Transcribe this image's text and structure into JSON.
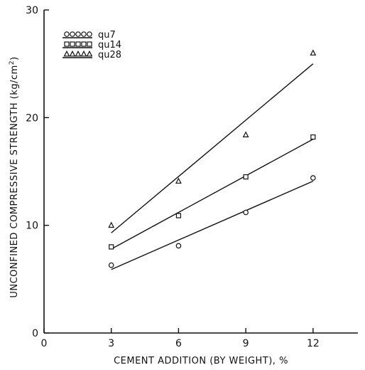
{
  "chart_data": {
    "type": "scatter",
    "xlabel": "CEMENT ADDITION (BY WEIGHT), %",
    "ylabel_parts": [
      "UNCONFINED COMPRESSIVE STRENGTH (kg/cm",
      "2",
      ")"
    ],
    "xlim": [
      0,
      14
    ],
    "ylim": [
      0,
      30
    ],
    "x_ticks": [
      0,
      3,
      6,
      9,
      12
    ],
    "y_ticks": [
      0,
      10,
      20,
      30
    ],
    "grid": false,
    "legend_position": "top-left",
    "series": [
      {
        "name": "qu7",
        "marker": "circle",
        "x": [
          3,
          6,
          9,
          12
        ],
        "y": [
          6.3,
          8.1,
          11.2,
          14.4
        ],
        "fit": [
          [
            3,
            5.9
          ],
          [
            12,
            14.1
          ]
        ]
      },
      {
        "name": "qu14",
        "marker": "square",
        "x": [
          3,
          6,
          9,
          12
        ],
        "y": [
          8.0,
          10.9,
          14.5,
          18.2
        ],
        "fit": [
          [
            3,
            7.8
          ],
          [
            12,
            18.0
          ]
        ]
      },
      {
        "name": "qu28",
        "marker": "triangle",
        "x": [
          3,
          6,
          9,
          12
        ],
        "y": [
          10.0,
          14.1,
          18.4,
          26.0
        ],
        "fit": [
          [
            3,
            9.3
          ],
          [
            12,
            25.0
          ]
        ]
      }
    ]
  }
}
